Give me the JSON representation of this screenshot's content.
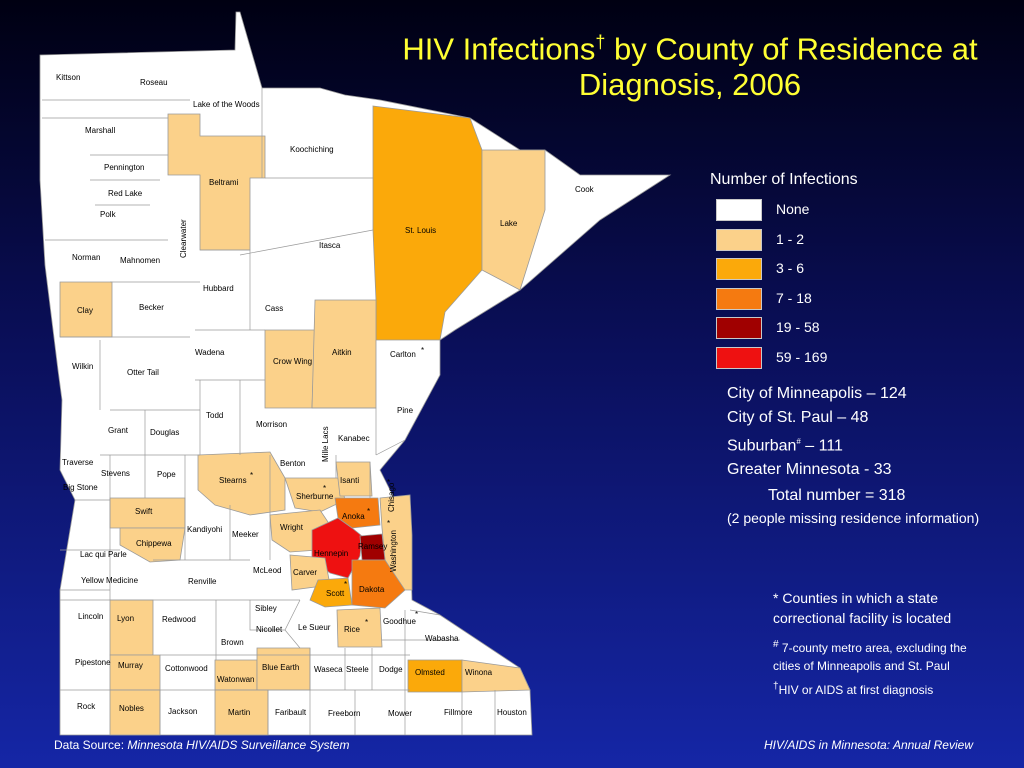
{
  "title": {
    "main": "HIV Infections",
    "dagger": "†",
    "rest": " by County of Residence at Diagnosis, 2006"
  },
  "legend": {
    "title": "Number of Infections",
    "items": [
      {
        "label": "None",
        "color": "#ffffff"
      },
      {
        "label": "1 - 2",
        "color": "#fbd18a"
      },
      {
        "label": "3 - 6",
        "color": "#fba90a"
      },
      {
        "label": "7 - 18",
        "color": "#f57a10"
      },
      {
        "label": "19 - 58",
        "color": "#a00000"
      },
      {
        "label": "59 - 169",
        "color": "#ee1111"
      }
    ]
  },
  "stats": {
    "minneapolis": "City of Minneapolis – 124",
    "st_paul": "City of St. Paul – 48",
    "suburban_label": "Suburban",
    "suburban_mark": "#",
    "suburban_value": " – 111",
    "greater_mn": "Greater Minnesota - 33",
    "total": "Total number = 318",
    "missing": "(2 people missing residence information)"
  },
  "notes": {
    "correctional_1": "* Counties in which a state",
    "correctional_2": "correctional facility is located",
    "metro_mark": "#",
    "metro_1": " 7-county metro area, excluding the",
    "metro_2": "cities of Minneapolis and St. Paul",
    "dagger_mark": "†",
    "dagger_text": "HIV or AIDS at first diagnosis"
  },
  "footer": {
    "source_label": "Data Source: ",
    "source_name": "Minnesota HIV/AIDS Surveillance System",
    "report": "HIV/AIDS in Minnesota: Annual Review"
  },
  "counties": {
    "kittson": "Kittson",
    "roseau": "Roseau",
    "lake_of_the_woods": "Lake of the Woods",
    "marshall": "Marshall",
    "pennington": "Pennington",
    "red_lake": "Red Lake",
    "polk": "Polk",
    "beltrami": "Beltrami",
    "koochiching": "Koochiching",
    "st_louis": "St. Louis",
    "lake": "Lake",
    "cook": "Cook",
    "norman": "Norman",
    "mahnomen": "Mahnomen",
    "clearwater": "Clearwater",
    "itasca": "Itasca",
    "clay": "Clay",
    "becker": "Becker",
    "hubbard": "Hubbard",
    "cass": "Cass",
    "wilkin": "Wilkin",
    "otter_tail": "Otter Tail",
    "wadena": "Wadena",
    "crow_wing": "Crow Wing",
    "aitkin": "Aitkin",
    "carlton": "Carlton",
    "pine": "Pine",
    "todd": "Todd",
    "morrison": "Morrison",
    "mille_lacs": "Mille Lacs",
    "kanabec": "Kanabec",
    "grant": "Grant",
    "douglas": "Douglas",
    "traverse": "Traverse",
    "stevens": "Stevens",
    "pope": "Pope",
    "big_stone": "Big Stone",
    "stearns": "Stearns",
    "benton": "Benton",
    "sherburne": "Sherburne",
    "isanti": "Isanti",
    "chisago": "Chisago",
    "swift": "Swift",
    "kandiyohi": "Kandiyohi",
    "meeker": "Meeker",
    "wright": "Wright",
    "anoka": "Anoka",
    "chippewa": "Chippewa",
    "lac_qui_parle": "Lac qui Parle",
    "hennepin": "Hennepin",
    "ramsey": "Ramsey",
    "washington": "Washington",
    "yellow_medicine": "Yellow Medicine",
    "renville": "Renville",
    "mcleod": "McLeod",
    "carver": "Carver",
    "scott": "Scott",
    "dakota": "Dakota",
    "lincoln": "Lincoln",
    "lyon": "Lyon",
    "redwood": "Redwood",
    "sibley": "Sibley",
    "nicollet": "Nicollet",
    "le_sueur": "Le Sueur",
    "rice": "Rice",
    "goodhue": "Goodhue",
    "wabasha": "Wabasha",
    "brown": "Brown",
    "pipestone": "Pipestone",
    "murray": "Murray",
    "cottonwood": "Cottonwood",
    "blue_earth": "Blue Earth",
    "watonwan": "Watonwan",
    "waseca": "Waseca",
    "steele": "Steele",
    "dodge": "Dodge",
    "olmsted": "Olmsted",
    "winona": "Winona",
    "rock": "Rock",
    "nobles": "Nobles",
    "jackson": "Jackson",
    "martin": "Martin",
    "faribault": "Faribault",
    "freeborn": "Freeborn",
    "mower": "Mower",
    "fillmore": "Fillmore",
    "houston": "Houston",
    "star": "*"
  }
}
